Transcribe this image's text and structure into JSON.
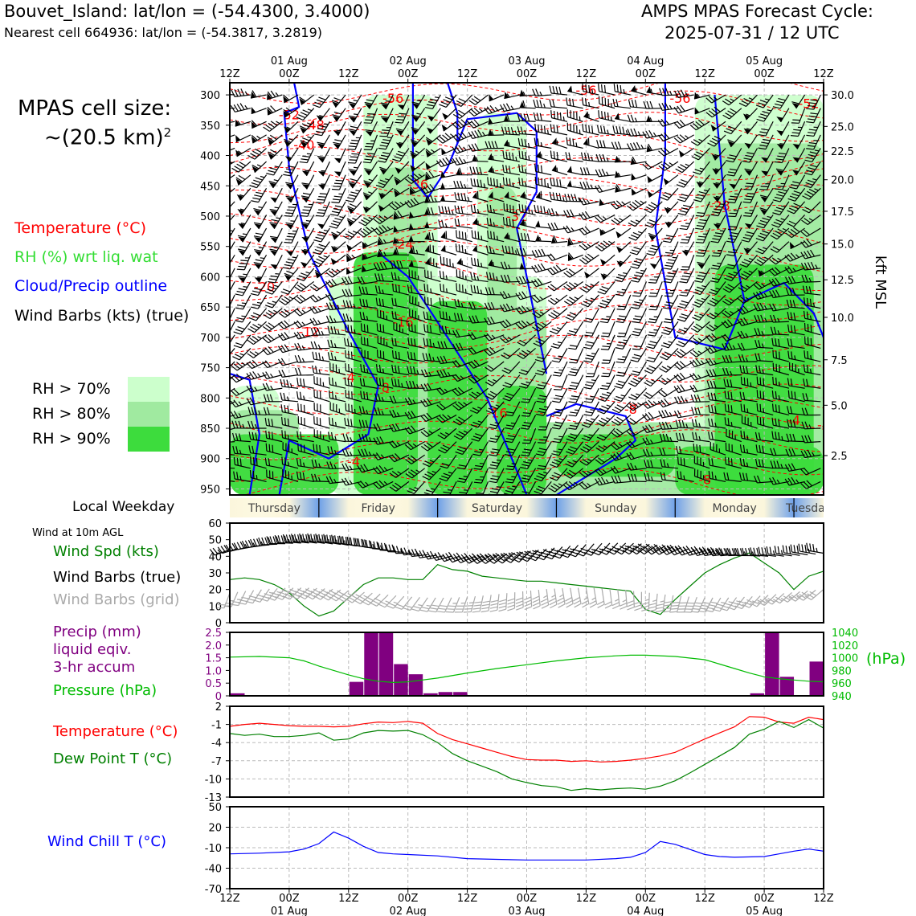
{
  "header": {
    "station_line": "Bouvet_Island: lat/lon = (-54.4300, 3.4000)",
    "nearest_cell_line": "Nearest cell 664936: lat/lon = (-54.3817, 3.2819)",
    "cycle_title": "AMPS MPAS Forecast Cycle:",
    "cycle_time": "2025-07-31 / 12 UTC"
  },
  "cell_size": {
    "line1": "MPAS cell size:",
    "line2": "~(20.5 km)",
    "exponent": "2"
  },
  "time_axis": {
    "hour_labels": [
      "12Z",
      "00Z",
      "12Z",
      "00Z",
      "12Z",
      "00Z",
      "12Z",
      "00Z",
      "12Z",
      "00Z",
      "12Z"
    ],
    "date_labels": [
      "01 Aug",
      "02 Aug",
      "03 Aug",
      "04 Aug",
      "05 Aug"
    ],
    "date_ticks": [
      1,
      3,
      5,
      7,
      9
    ]
  },
  "colors": {
    "temperature": "#ff0000",
    "rh": "#33dd33",
    "cloud": "#0000ff",
    "rh70": "#ccffcc",
    "rh80": "#a0eaa0",
    "rh90": "#3ddc3d",
    "precip": "#800080",
    "pressure": "#00bb00",
    "wind_speed": "#008000",
    "dew_point": "#008000",
    "wind_chill": "#0000ff",
    "barb_grid": "#aaaaaa"
  },
  "sounding": {
    "legend": {
      "temperature": "Temperature (°C)",
      "rh": "RH (%) wrt liq. wat",
      "cloud": "Cloud/Precip outline",
      "barbs": "Wind Barbs (kts) (true)"
    },
    "rh_key": [
      "RH > 70%",
      "RH > 80%",
      "RH > 90%"
    ],
    "right_axis_title": "kft MSL"
  },
  "weekday_bar": {
    "label": "Local Weekday",
    "days": [
      "Thursday",
      "Friday",
      "Saturday",
      "Sunday",
      "Monday",
      "Tuesday"
    ]
  },
  "panel_wind": {
    "title": "Wind at 10m AGL",
    "legend": [
      "Wind Spd (kts)",
      "Wind Barbs (true)",
      "Wind Barbs (grid)"
    ]
  },
  "panel_precip": {
    "legend": [
      "Precip (mm)",
      "liquid eqiv.",
      "3-hr accum"
    ],
    "pressure_label": "Pressure (hPa)",
    "right_unit": "(hPa)"
  },
  "panel_temp": {
    "legend": [
      "Temperature (°C)",
      "Dew Point T (°C)"
    ]
  },
  "panel_chill": {
    "legend": "Wind Chill T (°C)"
  },
  "chart_data": [
    {
      "type": "heatmap",
      "name": "sounding",
      "x_unit": "3-hourly forecast steps from 2025-07-31 12Z",
      "xlim": [
        0,
        120
      ],
      "y_axis_left": {
        "label": "pressure (hPa)",
        "ticks": [
          300,
          350,
          400,
          450,
          500,
          550,
          600,
          650,
          700,
          750,
          800,
          850,
          900,
          950
        ],
        "ylim": [
          960,
          280
        ]
      },
      "y_axis_right": {
        "label": "kft MSL",
        "ticks": [
          30.0,
          25.0,
          22.5,
          20.0,
          17.5,
          15.0,
          12.5,
          10.0,
          7.5,
          5.0,
          2.5
        ],
        "tick_pressure": [
          300,
          352,
          393,
          440,
          492,
          546,
          605,
          667,
          737,
          812,
          895
        ]
      },
      "temperature_contour_labels": [
        {
          "text": "-56",
          "x": 33,
          "p": 313
        },
        {
          "text": "-56",
          "x": 91,
          "p": 313
        },
        {
          "text": "-56",
          "x": 72,
          "p": 300
        },
        {
          "text": "-52",
          "x": 12,
          "p": 340
        },
        {
          "text": "-52",
          "x": 117,
          "p": 322
        },
        {
          "text": "-48",
          "x": 17,
          "p": 357
        },
        {
          "text": "-40",
          "x": 15,
          "p": 390
        },
        {
          "text": "-36",
          "x": 38,
          "p": 455
        },
        {
          "text": "-32",
          "x": 58,
          "p": 508
        },
        {
          "text": "-28",
          "x": 99,
          "p": 490
        },
        {
          "text": "-24",
          "x": 35,
          "p": 554
        },
        {
          "text": "-20",
          "x": 7,
          "p": 624
        },
        {
          "text": "-16",
          "x": 35,
          "p": 682
        },
        {
          "text": "-12",
          "x": 16,
          "p": 698
        },
        {
          "text": "-16",
          "x": 54,
          "p": 832
        },
        {
          "text": "-8",
          "x": 31,
          "p": 790
        },
        {
          "text": "-4",
          "x": 24,
          "p": 774
        },
        {
          "text": "-4",
          "x": 25,
          "p": 912
        },
        {
          "text": "-8",
          "x": 81,
          "p": 826
        },
        {
          "text": "-8",
          "x": 96,
          "p": 942
        },
        {
          "text": "-4",
          "x": 114,
          "p": 844
        },
        {
          "text": "-4",
          "x": 120,
          "p": 852
        }
      ]
    },
    {
      "type": "line",
      "name": "wind_10m",
      "ylim": [
        0,
        60
      ],
      "yticks": [
        0,
        10,
        20,
        30,
        40,
        50,
        60
      ],
      "series": [
        {
          "name": "Wind Spd (kts)",
          "x": [
            0,
            3,
            6,
            9,
            12,
            15,
            18,
            21,
            24,
            27,
            30,
            33,
            36,
            39,
            42,
            45,
            48,
            51,
            54,
            57,
            60,
            63,
            66,
            69,
            72,
            75,
            78,
            81,
            84,
            87,
            90,
            93,
            96,
            99,
            102,
            105,
            108,
            111,
            114,
            117,
            120
          ],
          "values": [
            26,
            27,
            26,
            23,
            18,
            10,
            4,
            7,
            15,
            23,
            27,
            27,
            26,
            26,
            35,
            32,
            31,
            28,
            27,
            26,
            25,
            25,
            24,
            23,
            22,
            21,
            20,
            19,
            8,
            5,
            14,
            22,
            30,
            35,
            39,
            42,
            36,
            30,
            20,
            28,
            31
          ]
        }
      ],
      "barbs_true_kts": [
        {
          "x": 0,
          "spd": 45
        },
        {
          "x": 10,
          "spd": 35
        },
        {
          "x": 21,
          "spd": 40
        },
        {
          "x": 33,
          "spd": 35
        },
        {
          "x": 57,
          "spd": 25
        },
        {
          "x": 84,
          "spd": 20
        },
        {
          "x": 105,
          "spd": 40
        },
        {
          "x": 120,
          "spd": 35
        }
      ]
    },
    {
      "type": "bar",
      "name": "precip_3hr",
      "ylabel": "Precip (mm)",
      "ylim": [
        0,
        2.5
      ],
      "yticks": [
        0,
        0.5,
        1.0,
        1.5,
        2.0,
        2.5
      ],
      "x": [
        0,
        1,
        2,
        3,
        4,
        5,
        6,
        7,
        8,
        9,
        10,
        11,
        12,
        13,
        14,
        15,
        16,
        17,
        18,
        19,
        20,
        21,
        22,
        23,
        24,
        25,
        26,
        27,
        28,
        29,
        30,
        31,
        32,
        33,
        34,
        35,
        36,
        37,
        38,
        39
      ],
      "values": [
        0.1,
        0,
        0,
        0,
        0,
        0,
        0,
        0,
        0.55,
        2.5,
        2.5,
        1.25,
        0.85,
        0.1,
        0.15,
        0.15,
        0,
        0,
        0,
        0,
        0,
        0,
        0,
        0,
        0,
        0,
        0,
        0,
        0,
        0,
        0,
        0,
        0,
        0,
        0,
        0.1,
        2.5,
        0.75,
        0,
        1.35
      ],
      "pressure": {
        "name": "Pressure (hPa)",
        "ylim": [
          940,
          1040
        ],
        "yticks": [
          940,
          960,
          980,
          1000,
          1020,
          1040
        ],
        "x": [
          0,
          6,
          12,
          15,
          18,
          21,
          24,
          27,
          30,
          33,
          36,
          42,
          48,
          54,
          60,
          66,
          72,
          78,
          81,
          84,
          90,
          96,
          99,
          102,
          105,
          108,
          111,
          114,
          117,
          120
        ],
        "values": [
          1001,
          1002,
          1000,
          995,
          987,
          980,
          973,
          967,
          963,
          961,
          962,
          968,
          976,
          983,
          989,
          995,
          1000,
          1003,
          1004,
          1004,
          1002,
          997,
          990,
          983,
          976,
          970,
          967,
          965,
          963,
          962
        ]
      }
    },
    {
      "type": "line",
      "name": "temperature_2m",
      "ylim": [
        -13,
        2
      ],
      "yticks": [
        -13,
        -10,
        -7,
        -4,
        -1,
        2
      ],
      "x": [
        0,
        3,
        6,
        9,
        12,
        15,
        18,
        21,
        24,
        27,
        30,
        33,
        36,
        39,
        42,
        45,
        48,
        51,
        54,
        57,
        60,
        63,
        66,
        69,
        72,
        75,
        78,
        81,
        84,
        87,
        90,
        93,
        96,
        99,
        102,
        105,
        108,
        111,
        114,
        117,
        120
      ],
      "series": [
        {
          "name": "Temperature (°C)",
          "values": [
            -1.3,
            -1.0,
            -0.8,
            -1.0,
            -1.2,
            -1.3,
            -1.3,
            -1.4,
            -1.3,
            -0.9,
            -0.6,
            -0.7,
            -0.5,
            -0.8,
            -2.5,
            -3.5,
            -4.2,
            -4.9,
            -5.6,
            -6.3,
            -6.8,
            -6.9,
            -6.9,
            -7.1,
            -7.0,
            -7.2,
            -7.1,
            -6.9,
            -6.6,
            -6.2,
            -5.6,
            -4.5,
            -3.4,
            -2.4,
            -1.4,
            0.3,
            0.2,
            -0.6,
            -0.8,
            0.2,
            -0.2
          ]
        },
        {
          "name": "Dew Point T (°C)",
          "values": [
            -2.5,
            -2.8,
            -2.6,
            -3.0,
            -3.0,
            -2.8,
            -2.4,
            -3.6,
            -3.4,
            -2.4,
            -2.0,
            -2.1,
            -2.0,
            -2.7,
            -4.0,
            -5.8,
            -7.0,
            -7.9,
            -8.8,
            -10.0,
            -10.6,
            -11.1,
            -11.3,
            -11.9,
            -11.6,
            -11.8,
            -11.6,
            -11.5,
            -11.7,
            -11.2,
            -10.3,
            -9.0,
            -7.6,
            -6.2,
            -4.8,
            -2.6,
            -1.8,
            -0.5,
            -1.5,
            -0.2,
            -1.6
          ]
        }
      ]
    },
    {
      "type": "line",
      "name": "wind_chill",
      "ylim": [
        -70,
        50
      ],
      "yticks": [
        -70,
        -40,
        -10,
        20,
        50
      ],
      "x": [
        0,
        6,
        12,
        15,
        18,
        21,
        24,
        27,
        30,
        33,
        36,
        42,
        48,
        54,
        60,
        66,
        72,
        78,
        81,
        84,
        87,
        90,
        96,
        99,
        102,
        108,
        111,
        114,
        117,
        120
      ],
      "series": [
        {
          "name": "Wind Chill T (°C)",
          "values": [
            -19,
            -18,
            -16,
            -12,
            -4,
            13,
            4,
            -8,
            -17,
            -19,
            -20,
            -22,
            -26,
            -27,
            -28,
            -28,
            -28,
            -26,
            -24,
            -17,
            -1,
            -5,
            -20,
            -23,
            -24,
            -23,
            -19,
            -15,
            -12,
            -15
          ]
        }
      ]
    }
  ]
}
